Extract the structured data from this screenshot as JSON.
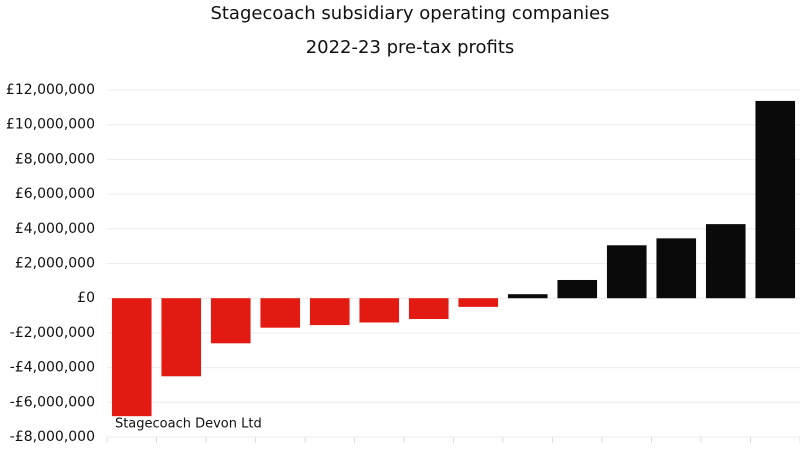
{
  "chart_data": {
    "type": "bar",
    "title": "Stagecoach subsidiary operating companies",
    "subtitle": "2022-23 pre-tax profits",
    "categories": [
      "Stagecoach Devon Ltd",
      null,
      null,
      null,
      null,
      null,
      null,
      null,
      null,
      null,
      null,
      null,
      null,
      null
    ],
    "values": [
      -6800000,
      -4500000,
      -2600000,
      -1700000,
      -1550000,
      -1400000,
      -1200000,
      -500000,
      230000,
      1050000,
      3050000,
      3450000,
      4270000,
      11370000
    ],
    "colors": [
      "#e31a11",
      "#e31a11",
      "#e31a11",
      "#e31a11",
      "#e31a11",
      "#e31a11",
      "#e31a11",
      "#e31a11",
      "#0a0a0a",
      "#0a0a0a",
      "#0a0a0a",
      "#0a0a0a",
      "#0a0a0a",
      "#0a0a0a"
    ],
    "ylim": [
      -8000000,
      12000000
    ],
    "yticks": [
      {
        "value": -8000000,
        "label": "-£8,000,000"
      },
      {
        "value": -6000000,
        "label": "-£6,000,000"
      },
      {
        "value": -4000000,
        "label": "-£4,000,000"
      },
      {
        "value": -2000000,
        "label": "-£2,000,000"
      },
      {
        "value": 0,
        "label": "£0"
      },
      {
        "value": 2000000,
        "label": "£2,000,000"
      },
      {
        "value": 4000000,
        "label": "£4,000,000"
      },
      {
        "value": 6000000,
        "label": "£6,000,000"
      },
      {
        "value": 8000000,
        "label": "£8,000,000"
      },
      {
        "value": 10000000,
        "label": "£10,000,000"
      },
      {
        "value": 12000000,
        "label": "£12,000,000"
      }
    ],
    "grid": true
  }
}
